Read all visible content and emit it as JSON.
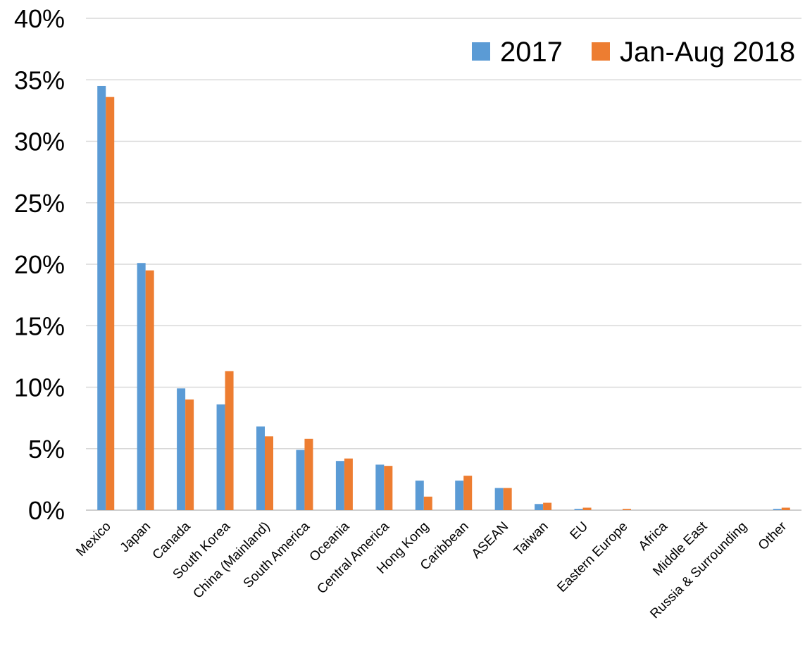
{
  "chart_data": {
    "type": "bar",
    "title": "",
    "xlabel": "",
    "ylabel": "",
    "ylim": [
      0,
      40
    ],
    "y_ticks": [
      "0%",
      "5%",
      "10%",
      "15%",
      "20%",
      "25%",
      "30%",
      "35%",
      "40%"
    ],
    "y_tick_values": [
      0,
      5,
      10,
      15,
      20,
      25,
      30,
      35,
      40
    ],
    "grid": true,
    "legend_position": "top-right",
    "categories": [
      "Mexico",
      "Japan",
      "Canada",
      "South Korea",
      "China (Mainland)",
      "South America",
      "Oceania",
      "Central America",
      "Hong Kong",
      "Caribbean",
      "ASEAN",
      "Taiwan",
      "EU",
      "Eastern Europe",
      "Africa",
      "Middle East",
      "Russia & Surrounding",
      "Other"
    ],
    "series": [
      {
        "name": "2017",
        "color": "#5b9bd5",
        "values": [
          34.5,
          20.1,
          9.9,
          8.6,
          6.8,
          4.9,
          4.0,
          3.7,
          2.4,
          2.4,
          1.8,
          0.5,
          0.1,
          0.0,
          0.0,
          0.0,
          0.0,
          0.1
        ]
      },
      {
        "name": "Jan-Aug 2018",
        "color": "#ed7d31",
        "values": [
          33.6,
          19.5,
          9.0,
          11.3,
          6.0,
          5.8,
          4.2,
          3.6,
          1.1,
          2.8,
          1.8,
          0.6,
          0.2,
          0.1,
          0.0,
          0.0,
          0.0,
          0.2
        ]
      }
    ]
  }
}
